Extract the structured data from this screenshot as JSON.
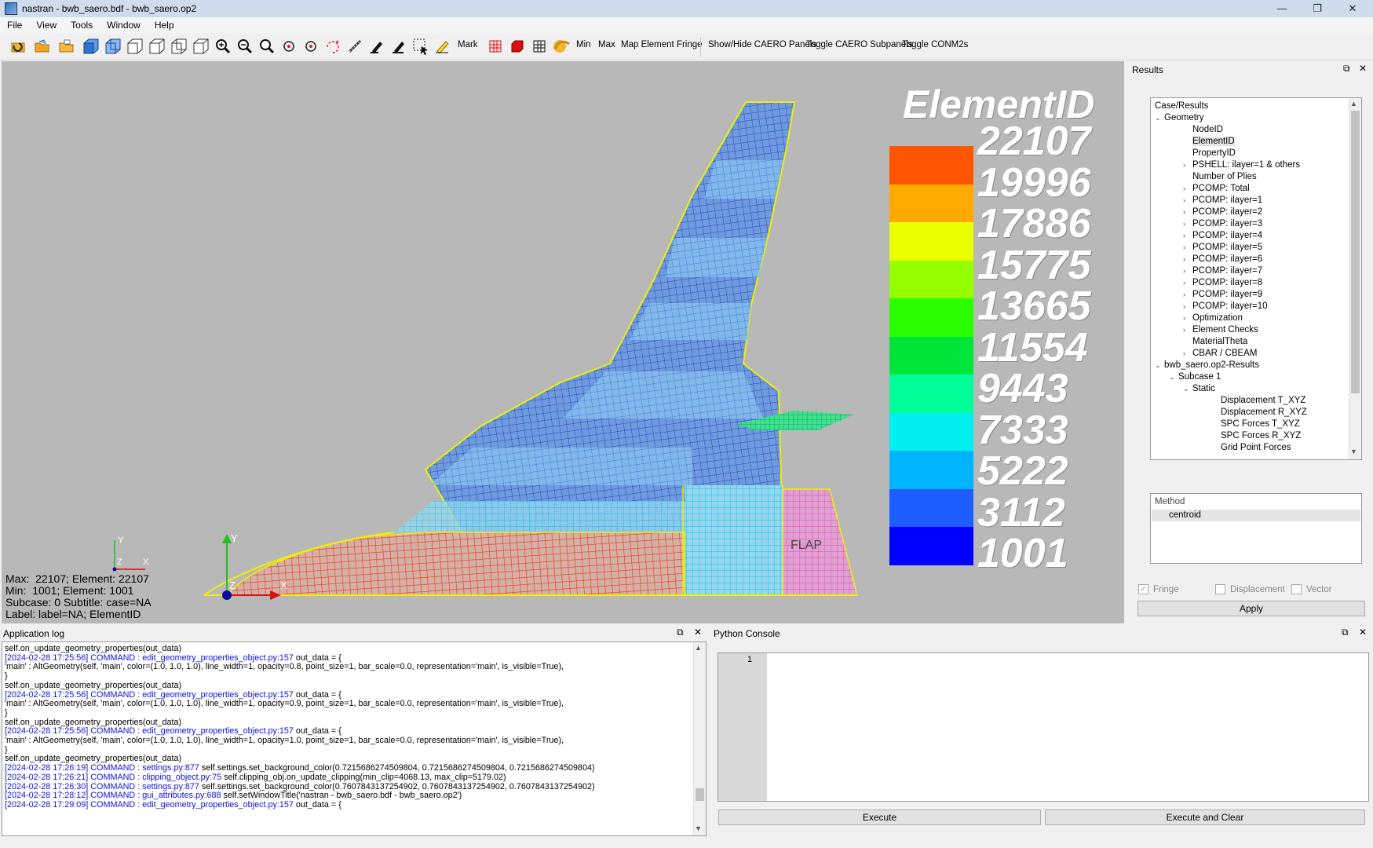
{
  "window": {
    "title": "nastran - bwb_saero.bdf - bwb_saero.op2",
    "minimize": "—",
    "maximize": "❐",
    "close": "✕"
  },
  "menu": [
    "File",
    "View",
    "Tools",
    "Window",
    "Help"
  ],
  "toolbar": {
    "text_buttons": {
      "mark": "Mark",
      "min": "Min",
      "max": "Max",
      "map_fringe": "Map Element Fringe",
      "caero_panels": "Show/Hide CAERO Panels",
      "caero_subpanels": "Toggle CAERO Subpanels",
      "conm2": "Toggle CONM2s"
    }
  },
  "legend": {
    "title": "ElementID",
    "values": [
      "22107",
      "19996",
      "17886",
      "15775",
      "13665",
      "11554",
      "9443",
      "7333",
      "5222",
      "3112",
      "1001"
    ],
    "colors": [
      "#ff5500",
      "#ffaa00",
      "#eaff00",
      "#95ff00",
      "#2aff00",
      "#00e63a",
      "#00ff9b",
      "#00f0f0",
      "#00b4ff",
      "#1e5eff",
      "#0000ff"
    ]
  },
  "viewport": {
    "info_max": "Max:  22107; Element: 22107",
    "info_min": "Min:  1001; Element: 1001",
    "info_subcase": "Subcase: 0 Subtitle: case=NA",
    "info_label": "Label: label=NA; ElementID",
    "flap_label": "FLAP",
    "axis_x": "X",
    "axis_y": "Y",
    "axis_z": "Z",
    "background": "#b8b8b8"
  },
  "results": {
    "dock_title": "Results",
    "tree_header": "Case/Results",
    "tree": [
      {
        "label": "Geometry",
        "indent": 0,
        "arrow": "v"
      },
      {
        "label": "NodeID",
        "indent": 2,
        "arrow": ""
      },
      {
        "label": "ElementID",
        "indent": 2,
        "arrow": "",
        "selected": true
      },
      {
        "label": "PropertyID",
        "indent": 2,
        "arrow": ""
      },
      {
        "label": "PSHELL: ilayer=1 & others",
        "indent": 2,
        "arrow": ">"
      },
      {
        "label": "Number of Plies",
        "indent": 2,
        "arrow": ""
      },
      {
        "label": "PCOMP: Total",
        "indent": 2,
        "arrow": ">"
      },
      {
        "label": "PCOMP: ilayer=1",
        "indent": 2,
        "arrow": ">"
      },
      {
        "label": "PCOMP: ilayer=2",
        "indent": 2,
        "arrow": ">"
      },
      {
        "label": "PCOMP: ilayer=3",
        "indent": 2,
        "arrow": ">"
      },
      {
        "label": "PCOMP: ilayer=4",
        "indent": 2,
        "arrow": ">"
      },
      {
        "label": "PCOMP: ilayer=5",
        "indent": 2,
        "arrow": ">"
      },
      {
        "label": "PCOMP: ilayer=6",
        "indent": 2,
        "arrow": ">"
      },
      {
        "label": "PCOMP: ilayer=7",
        "indent": 2,
        "arrow": ">"
      },
      {
        "label": "PCOMP: ilayer=8",
        "indent": 2,
        "arrow": ">"
      },
      {
        "label": "PCOMP: ilayer=9",
        "indent": 2,
        "arrow": ">"
      },
      {
        "label": "PCOMP: ilayer=10",
        "indent": 2,
        "arrow": ">"
      },
      {
        "label": "Optimization",
        "indent": 2,
        "arrow": ">"
      },
      {
        "label": "Element Checks",
        "indent": 2,
        "arrow": ">"
      },
      {
        "label": "MaterialTheta",
        "indent": 2,
        "arrow": ""
      },
      {
        "label": "CBAR / CBEAM",
        "indent": 2,
        "arrow": ">"
      },
      {
        "label": "bwb_saero.op2-Results",
        "indent": 0,
        "arrow": "v"
      },
      {
        "label": "Subcase 1",
        "indent": 1,
        "arrow": "v"
      },
      {
        "label": "Static",
        "indent": 2,
        "arrow": "v"
      },
      {
        "label": "Displacement T_XYZ",
        "indent": 4,
        "arrow": ""
      },
      {
        "label": "Displacement R_XYZ",
        "indent": 4,
        "arrow": ""
      },
      {
        "label": "SPC Forces T_XYZ",
        "indent": 4,
        "arrow": ""
      },
      {
        "label": "SPC Forces R_XYZ",
        "indent": 4,
        "arrow": ""
      },
      {
        "label": "Grid Point Forces",
        "indent": 4,
        "arrow": ""
      }
    ],
    "method_header": "Method",
    "method_value": "centroid",
    "fringe": "Fringe",
    "displacement": "Displacement",
    "vector": "Vector",
    "apply": "Apply"
  },
  "log": {
    "dock_title": "Application log",
    "lines": [
      {
        "pre": "",
        "link": "",
        "text": "self.on_update_geometry_properties(out_data)"
      },
      {
        "pre": "[2024-02-28 17:25:56] COMMAND : ",
        "link": "edit_geometry_properties_object.py:157",
        "text": " out_data = {"
      },
      {
        "pre": "",
        "link": "",
        "text": "'main' : AltGeometry(self, 'main', color=(1.0, 1.0, 1.0), line_width=1, opacity=0.8, point_size=1, bar_scale=0.0, representation='main', is_visible=True),"
      },
      {
        "pre": "",
        "link": "",
        "text": "}"
      },
      {
        "pre": "",
        "link": "",
        "text": "self.on_update_geometry_properties(out_data)"
      },
      {
        "pre": "[2024-02-28 17:25:56] COMMAND : ",
        "link": "edit_geometry_properties_object.py:157",
        "text": " out_data = {"
      },
      {
        "pre": "",
        "link": "",
        "text": "'main' : AltGeometry(self, 'main', color=(1.0, 1.0, 1.0), line_width=1, opacity=0.9, point_size=1, bar_scale=0.0, representation='main', is_visible=True),"
      },
      {
        "pre": "",
        "link": "",
        "text": "}"
      },
      {
        "pre": "",
        "link": "",
        "text": "self.on_update_geometry_properties(out_data)"
      },
      {
        "pre": "[2024-02-28 17:25:56] COMMAND : ",
        "link": "edit_geometry_properties_object.py:157",
        "text": " out_data = {"
      },
      {
        "pre": "",
        "link": "",
        "text": "'main' : AltGeometry(self, 'main', color=(1.0, 1.0, 1.0), line_width=1, opacity=1.0, point_size=1, bar_scale=0.0, representation='main', is_visible=True),"
      },
      {
        "pre": "",
        "link": "",
        "text": "}"
      },
      {
        "pre": "",
        "link": "",
        "text": "self.on_update_geometry_properties(out_data)"
      },
      {
        "pre": "[2024-02-28 17:26:19] COMMAND : ",
        "link": "settings.py:877",
        "text": " self.settings.set_background_color(0.7215686274509804, 0.7215686274509804, 0.7215686274509804)"
      },
      {
        "pre": "[2024-02-28 17:26:21] COMMAND : ",
        "link": "clipping_object.py:75",
        "text": " self.clipping_obj.on_update_clipping(min_clip=4068.13, max_clip=5179.02)"
      },
      {
        "pre": "[2024-02-28 17:26:30] COMMAND : ",
        "link": "settings.py:877",
        "text": " self.settings.set_background_color(0.7607843137254902, 0.7607843137254902, 0.7607843137254902)"
      },
      {
        "pre": "[2024-02-28 17:28:12] COMMAND : ",
        "link": "gui_attributes.py:688",
        "text": " self.setWindowTitle('nastran - bwb_saero.bdf - bwb_saero.op2')"
      },
      {
        "pre": "[2024-02-28 17:29:09] COMMAND : ",
        "link": "edit_geometry_properties_object.py:157",
        "text": " out_data = {"
      }
    ]
  },
  "python": {
    "dock_title": "Python Console",
    "line_number": "1",
    "execute": "Execute",
    "execute_clear": "Execute and Clear"
  }
}
